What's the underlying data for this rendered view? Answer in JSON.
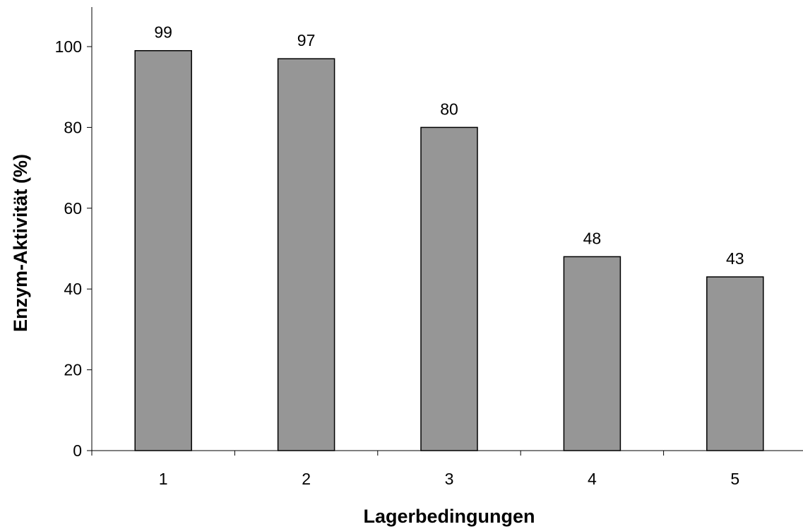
{
  "chart_data": {
    "type": "bar",
    "title": "",
    "xlabel": "Lagerbedingungen",
    "ylabel": "Enzym-Aktivität (%)",
    "categories": [
      "1",
      "2",
      "3",
      "4",
      "5"
    ],
    "values": [
      99,
      97,
      80,
      48,
      43
    ],
    "data_labels": [
      "99",
      "97",
      "80",
      "48",
      "43"
    ],
    "ylim": [
      0,
      100
    ],
    "yticks": [
      0,
      20,
      40,
      60,
      80,
      100
    ],
    "ytick_labels": [
      "0",
      "20",
      "40",
      "60",
      "80",
      "100"
    ],
    "grid": false,
    "legend": "none",
    "colors": {
      "bar_fill": "#969696",
      "bar_stroke": "#000000",
      "axis": "#000000"
    }
  }
}
